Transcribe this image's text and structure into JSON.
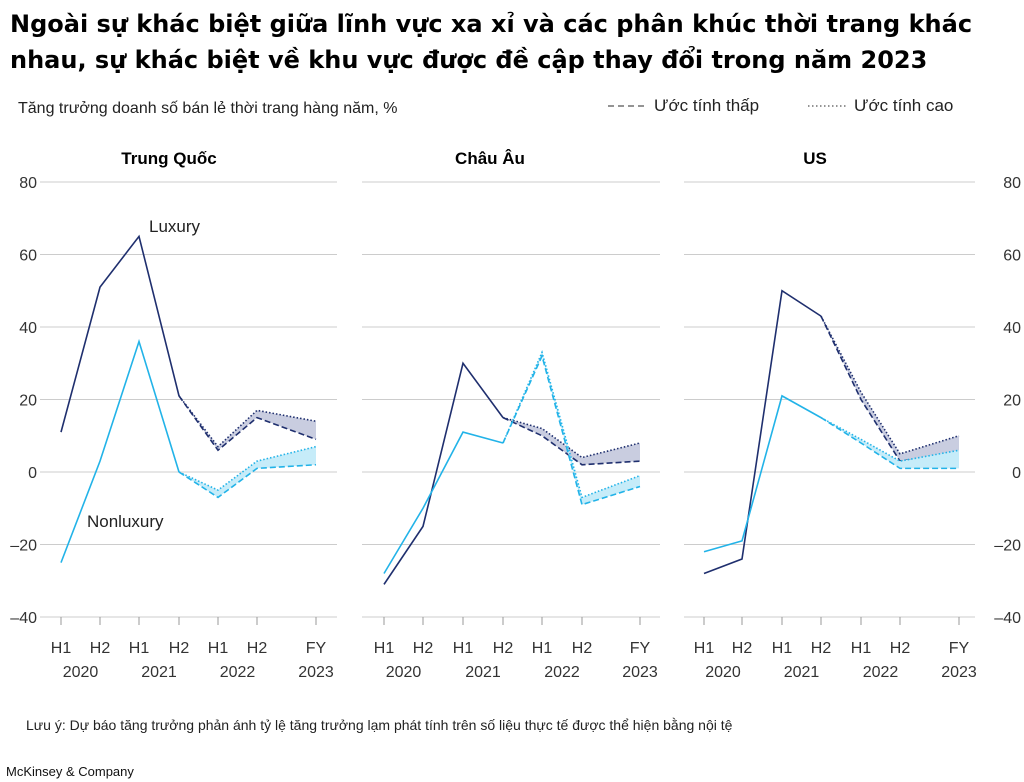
{
  "title": "Ngoài sự khác biệt giữa lĩnh vực xa xỉ và các phân khúc thời trang khác nhau, sự khác biệt về khu vực được đề cập thay đổi trong năm 2023",
  "subtitle": "Tăng trưởng doanh số bán lẻ thời trang hàng năm, %",
  "legend": {
    "low": "Ước tính thấp",
    "high": "Ước tính cao"
  },
  "note": "Lưu ý: Dự báo tăng trưởng phản ánh tỷ lệ tăng trưởng lạm phát tính trên số liệu thực tế được thể hiện bằng nội tệ",
  "brand": "McKinsey & Company",
  "colors": {
    "luxury": "#1f2f6e",
    "nonluxury": "#22b3e8",
    "grid": "#cccccc",
    "luxury_fill": "#c9cde0",
    "nonluxury_fill": "#c6ecf9"
  },
  "chart_data": [
    {
      "type": "line",
      "title": "Trung Quốc",
      "x": [
        "H1 2020",
        "H2 2020",
        "H1 2021",
        "H2 2021",
        "H1 2022",
        "H2 2022",
        "FY 2023"
      ],
      "x_tick_top": [
        "H1",
        "H2",
        "H1",
        "H2",
        "H1",
        "H2",
        "FY"
      ],
      "x_tick_bottom": [
        "2020",
        "2021",
        "2022",
        "2023"
      ],
      "ylim": [
        -40,
        80
      ],
      "yticks": [
        "80",
        "60",
        "40",
        "20",
        "0",
        "–20",
        "–40"
      ],
      "series": [
        {
          "name": "Luxury",
          "values": [
            11,
            51,
            65,
            21,
            null,
            null,
            null
          ],
          "forecast_low": [
            null,
            null,
            null,
            21,
            6,
            15,
            9
          ],
          "forecast_high": [
            null,
            null,
            null,
            21,
            7,
            17,
            14
          ]
        },
        {
          "name": "Nonluxury",
          "values": [
            -25,
            3,
            36,
            0,
            null,
            null,
            null
          ],
          "forecast_low": [
            null,
            null,
            null,
            0,
            -7,
            1,
            2
          ],
          "forecast_high": [
            null,
            null,
            null,
            0,
            -5,
            3,
            7
          ]
        }
      ]
    },
    {
      "type": "line",
      "title": "Châu Âu",
      "x": [
        "H1 2020",
        "H2 2020",
        "H1 2021",
        "H2 2021",
        "H1 2022",
        "H2 2022",
        "FY 2023"
      ],
      "x_tick_top": [
        "H1",
        "H2",
        "H1",
        "H2",
        "H1",
        "H2",
        "FY"
      ],
      "x_tick_bottom": [
        "2020",
        "2021",
        "2022",
        "2023"
      ],
      "ylim": [
        -40,
        80
      ],
      "series": [
        {
          "name": "Luxury",
          "values": [
            -31,
            -15,
            30,
            15,
            null,
            null,
            null
          ],
          "forecast_low": [
            null,
            null,
            null,
            15,
            10,
            2,
            3
          ],
          "forecast_high": [
            null,
            null,
            null,
            15,
            12,
            4,
            8
          ]
        },
        {
          "name": "Nonluxury",
          "values": [
            -28,
            -10,
            11,
            8,
            null,
            null,
            null
          ],
          "forecast_low": [
            null,
            null,
            null,
            8,
            32,
            -9,
            -4
          ],
          "forecast_high": [
            null,
            null,
            null,
            8,
            33,
            -7,
            -1
          ]
        }
      ]
    },
    {
      "type": "line",
      "title": "US",
      "x": [
        "H1 2020",
        "H2 2020",
        "H1 2021",
        "H2 2021",
        "H1 2022",
        "H2 2022",
        "FY 2023"
      ],
      "x_tick_top": [
        "H1",
        "H2",
        "H1",
        "H2",
        "H1",
        "H2",
        "FY"
      ],
      "x_tick_bottom": [
        "2020",
        "2021",
        "2022",
        "2023"
      ],
      "ylim": [
        -40,
        80
      ],
      "yticks": [
        "80",
        "60",
        "40",
        "20",
        "0",
        "–20",
        "–40"
      ],
      "series": [
        {
          "name": "Luxury",
          "values": [
            -28,
            -24,
            50,
            43,
            null,
            null,
            null
          ],
          "forecast_low": [
            null,
            null,
            null,
            43,
            20,
            3,
            5
          ],
          "forecast_high": [
            null,
            null,
            null,
            43,
            22,
            5,
            10
          ]
        },
        {
          "name": "Nonluxury",
          "values": [
            -22,
            -19,
            21,
            15,
            null,
            null,
            null
          ],
          "forecast_low": [
            null,
            null,
            null,
            15,
            8,
            1,
            1
          ],
          "forecast_high": [
            null,
            null,
            null,
            15,
            9,
            3,
            6
          ]
        }
      ]
    }
  ],
  "annotations": {
    "luxury": "Luxury",
    "nonluxury": "Nonluxury"
  }
}
